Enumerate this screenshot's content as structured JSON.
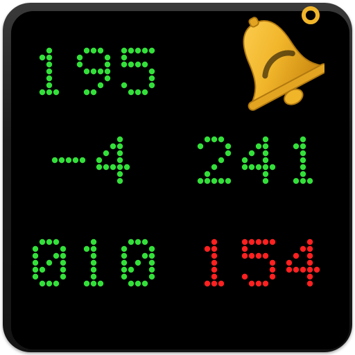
{
  "colors": {
    "green_on": "#33e03a",
    "red_on": "#ff2020",
    "bell_gold": "#f1b52a",
    "bell_gold_dark": "#c8860f",
    "panel_bg": "#000000",
    "bezel": "#262626"
  },
  "icon": {
    "name": "bell-icon"
  },
  "readouts": [
    {
      "id": "top-left",
      "value": "195",
      "color": "green"
    },
    {
      "id": "mid-left",
      "value": "-4",
      "color": "green"
    },
    {
      "id": "mid-right",
      "value": "241",
      "color": "green"
    },
    {
      "id": "bottom-left",
      "value": "010",
      "color": "green"
    },
    {
      "id": "bottom-right",
      "value": "154",
      "color": "red"
    }
  ]
}
